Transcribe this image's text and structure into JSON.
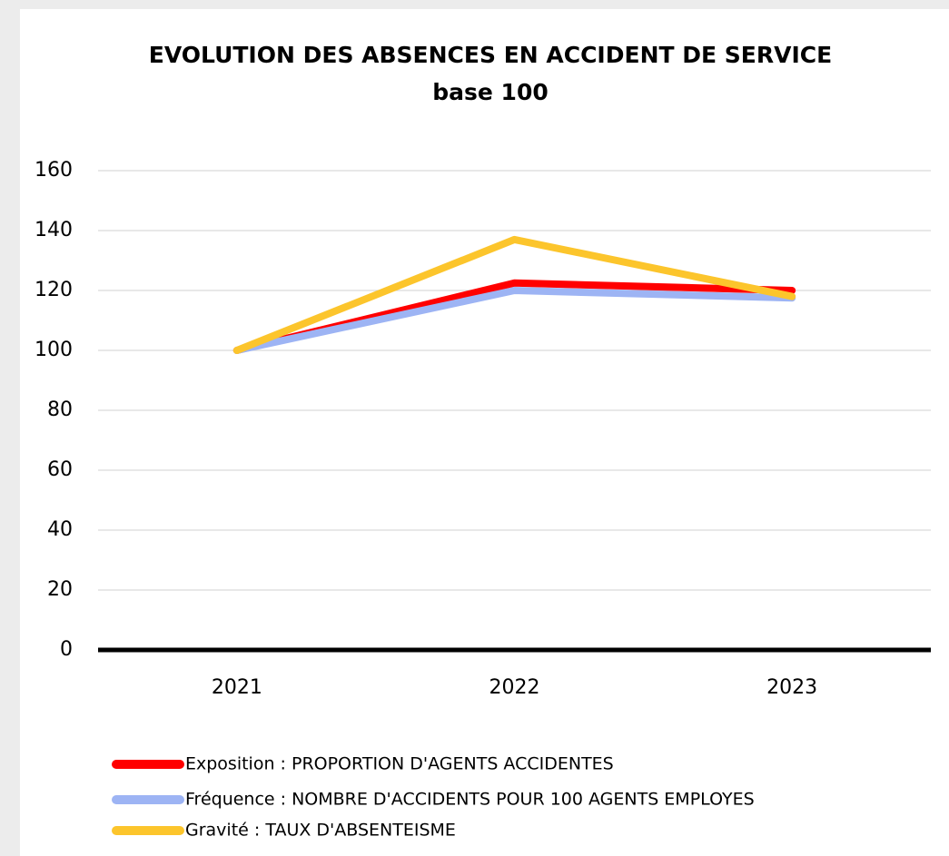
{
  "chart_data": {
    "type": "line",
    "title": "EVOLUTION DES ABSENCES EN ACCIDENT DE SERVICE",
    "subtitle": "base 100",
    "categories": [
      "2021",
      "2022",
      "2023"
    ],
    "series": [
      {
        "name": "Exposition : PROPORTION D'AGENTS ACCIDENTES",
        "color": "#ff0000",
        "values": [
          100,
          122.5,
          120
        ]
      },
      {
        "name": "Fréquence : NOMBRE D'ACCIDENTS POUR 100 AGENTS EMPLOYES",
        "color": "#9db4f4",
        "values": [
          100,
          120,
          117.5
        ]
      },
      {
        "name": "Gravité : TAUX D'ABSENTEISME",
        "color": "#fcc52c",
        "values": [
          100,
          137,
          118
        ]
      }
    ],
    "ylim": [
      0,
      160
    ],
    "yticks": [
      0,
      20,
      40,
      60,
      80,
      100,
      120,
      140,
      160
    ],
    "grid": true
  }
}
